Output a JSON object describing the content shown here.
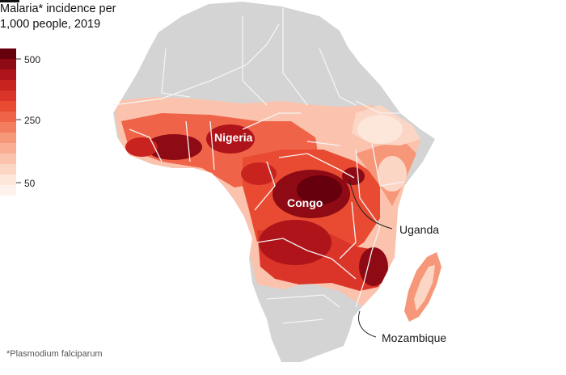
{
  "title": "Malaria* incidence per 1,000 people, 2019",
  "legend": {
    "ticks": [
      "500",
      "250",
      "50"
    ],
    "colors": [
      "#67000d",
      "#8e0a14",
      "#ae1419",
      "#c8231f",
      "#db3428",
      "#e84b32",
      "#ef6448",
      "#f47d5f",
      "#f79779",
      "#f9ae93",
      "#fbc3ad",
      "#fcd6c5",
      "#fde6da",
      "#fff2ec"
    ]
  },
  "map": {
    "land_color": "#d4d4d4",
    "border_color": "#f4f4f4",
    "country_labels": [
      "Nigeria",
      "Congo"
    ],
    "annotations": [
      "Uganda",
      "Mozambique"
    ]
  },
  "footnote": "*Plasmodium falciparum"
}
